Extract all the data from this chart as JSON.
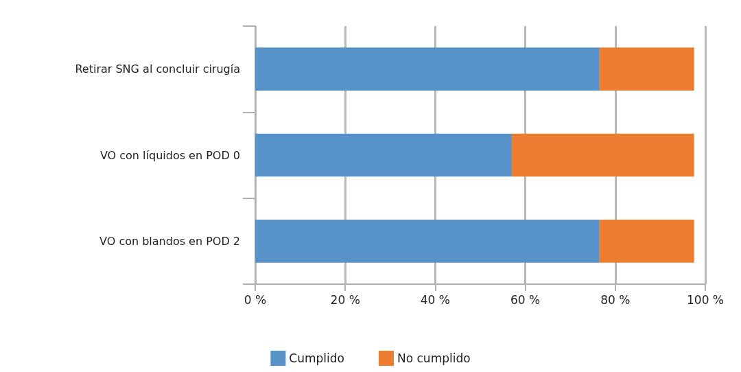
{
  "chart_data": {
    "type": "bar",
    "orientation": "horizontal",
    "stacked": true,
    "categories": [
      "Retirar SNG al concluir cirugía",
      "VO con líquidos en POD 0",
      "VO con blandos en POD 2"
    ],
    "series": [
      {
        "name": "Cumplido",
        "color": "#5793c9",
        "values": [
          76.5,
          57,
          76.5
        ]
      },
      {
        "name": "No cumplido",
        "color": "#ed7d31",
        "values": [
          21,
          40.5,
          21
        ]
      }
    ],
    "xlim": [
      0,
      100
    ],
    "xticks": [
      {
        "value": 0,
        "label": "0 %"
      },
      {
        "value": 20,
        "label": "20 %"
      },
      {
        "value": 40,
        "label": "40 %"
      },
      {
        "value": 60,
        "label": "60 %"
      },
      {
        "value": 80,
        "label": "80 %"
      },
      {
        "value": 100,
        "label": "100 %"
      }
    ],
    "grid": "x",
    "legend": "bottom"
  }
}
